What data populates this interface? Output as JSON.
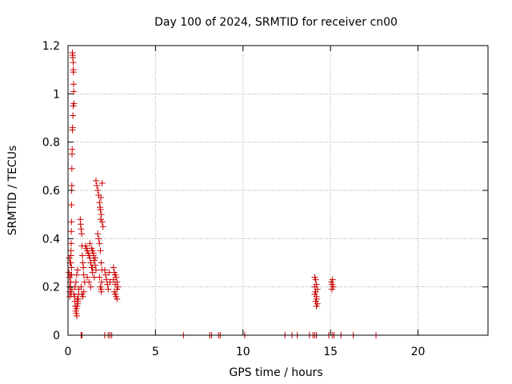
{
  "chart_data": {
    "type": "scatter",
    "title": "Day 100 of 2024, SRMTID for receiver cn00",
    "xlabel": "GPS time / hours",
    "ylabel": "SRMTID / TECUs",
    "xlim": [
      0,
      24
    ],
    "ylim": [
      0,
      1.2
    ],
    "xticks": [
      0,
      5,
      10,
      15,
      20
    ],
    "xtick_labels": [
      "0",
      "5",
      "10",
      "15",
      "20"
    ],
    "yticks": [
      0,
      0.2,
      0.4,
      0.6,
      0.8,
      1.0,
      1.2
    ],
    "ytick_labels": [
      "0",
      "0.2",
      "0.4",
      "0.6",
      "0.8",
      "1",
      "1.2"
    ],
    "grid": true,
    "colors": {
      "marker": "#cc0000",
      "grid": "#a0a0a0",
      "axis": "#000000"
    },
    "series": [
      {
        "name": "SRMTID",
        "marker": "plus",
        "x": [
          0.05,
          0.08,
          0.1,
          0.12,
          0.15,
          0.18,
          0.2,
          0.22,
          0.08,
          0.12,
          0.16,
          0.2,
          0.25,
          0.27,
          0.28,
          0.3,
          0.3,
          0.31,
          0.32,
          0.33,
          0.34,
          0.3,
          0.28,
          0.26,
          0.25,
          0.24,
          0.23,
          0.22,
          0.22,
          0.21,
          0.2,
          0.2,
          0.19,
          0.18,
          0.17,
          0.16,
          0.15,
          0.14,
          0.13,
          0.12,
          0.1,
          0.35,
          0.38,
          0.4,
          0.42,
          0.45,
          0.48,
          0.5,
          0.52,
          0.55,
          0.58,
          0.6,
          0.62,
          0.4,
          0.45,
          0.5,
          0.55,
          0.48,
          0.53,
          0.57,
          0.7,
          0.72,
          0.75,
          0.78,
          0.8,
          0.82,
          0.85,
          0.88,
          0.9,
          0.75,
          0.8,
          0.85,
          0.9,
          0.95,
          1.0,
          1.05,
          1.1,
          1.15,
          1.2,
          1.25,
          1.3,
          1.35,
          1.4,
          1.45,
          1.5,
          1.55,
          1.6,
          1.1,
          1.2,
          1.3,
          1.4,
          1.5,
          1.25,
          1.35,
          1.45,
          1.55,
          1.3,
          1.4,
          1.6,
          1.65,
          1.7,
          1.75,
          1.8,
          1.85,
          1.9,
          1.95,
          2.0,
          1.7,
          1.75,
          1.8,
          1.85,
          1.9,
          1.95,
          1.8,
          1.85,
          1.9,
          1.95,
          1.88,
          1.92,
          1.9,
          1.87,
          1.83,
          2.1,
          2.15,
          2.2,
          2.25,
          2.3,
          2.35,
          2.4,
          2.6,
          2.65,
          2.7,
          2.75,
          2.8,
          2.85,
          2.65,
          2.7,
          2.75,
          2.8,
          2.6,
          2.7,
          2.8,
          14.1,
          14.15,
          14.2,
          14.25,
          14.1,
          14.2,
          14.15,
          14.25,
          14.2,
          14.1,
          14.15,
          14.2,
          15.05,
          15.1,
          15.15,
          15.08,
          15.12,
          0.75,
          0.8,
          2.1,
          2.3,
          2.4,
          2.5,
          6.6,
          8.1,
          8.2,
          8.6,
          8.7,
          10.1,
          12.4,
          12.8,
          13.1,
          13.8,
          14.0,
          14.1,
          14.2,
          14.9,
          15.1,
          15.2,
          15.6,
          16.3,
          17.6
        ],
        "y": [
          0.26,
          0.24,
          0.2,
          0.18,
          0.22,
          0.17,
          0.25,
          0.19,
          0.32,
          0.3,
          0.33,
          0.28,
          1.17,
          1.16,
          1.15,
          1.13,
          1.1,
          1.09,
          1.04,
          1.01,
          0.96,
          0.95,
          0.91,
          0.86,
          0.85,
          0.77,
          0.75,
          0.69,
          0.62,
          0.6,
          0.54,
          0.47,
          0.43,
          0.38,
          0.35,
          0.3,
          0.25,
          0.22,
          0.2,
          0.18,
          0.16,
          0.17,
          0.16,
          0.14,
          0.12,
          0.1,
          0.09,
          0.08,
          0.12,
          0.13,
          0.15,
          0.17,
          0.19,
          0.2,
          0.22,
          0.25,
          0.27,
          0.11,
          0.15,
          0.14,
          0.48,
          0.46,
          0.44,
          0.42,
          0.37,
          0.33,
          0.3,
          0.28,
          0.25,
          0.2,
          0.17,
          0.16,
          0.18,
          0.22,
          0.37,
          0.36,
          0.35,
          0.34,
          0.33,
          0.32,
          0.3,
          0.28,
          0.35,
          0.33,
          0.31,
          0.29,
          0.27,
          0.24,
          0.22,
          0.2,
          0.26,
          0.24,
          0.38,
          0.36,
          0.34,
          0.32,
          0.3,
          0.28,
          0.64,
          0.62,
          0.6,
          0.58,
          0.55,
          0.52,
          0.5,
          0.47,
          0.45,
          0.42,
          0.4,
          0.38,
          0.35,
          0.3,
          0.27,
          0.24,
          0.2,
          0.18,
          0.63,
          0.57,
          0.22,
          0.19,
          0.48,
          0.53,
          0.27,
          0.25,
          0.23,
          0.21,
          0.19,
          0.26,
          0.22,
          0.28,
          0.26,
          0.25,
          0.24,
          0.22,
          0.2,
          0.18,
          0.17,
          0.16,
          0.15,
          0.23,
          0.21,
          0.19,
          0.24,
          0.23,
          0.21,
          0.19,
          0.17,
          0.15,
          0.14,
          0.13,
          0.12,
          0.2,
          0.18,
          0.16,
          0.22,
          0.21,
          0.2,
          0.19,
          0.23,
          0,
          0,
          0,
          0,
          0,
          0,
          0,
          0,
          0,
          0,
          0,
          0,
          0,
          0,
          0,
          0,
          0,
          0,
          0,
          0,
          0,
          0,
          0,
          0,
          0
        ]
      }
    ]
  }
}
